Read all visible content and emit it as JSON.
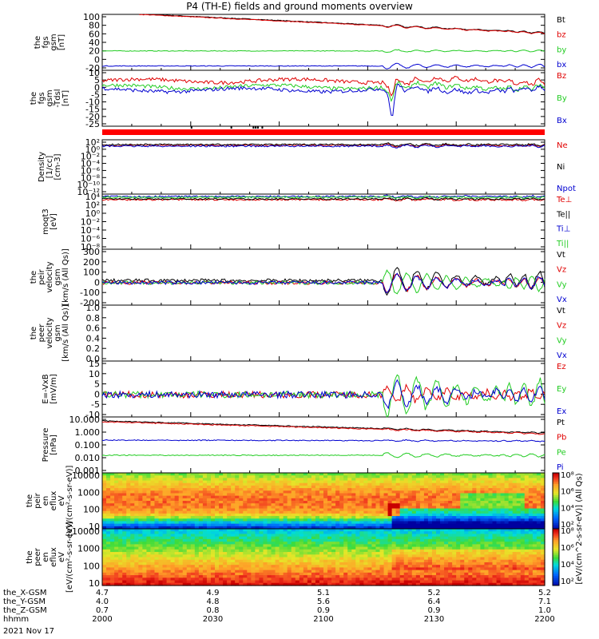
{
  "title": "P4 (TH-E) fields and ground moments overview",
  "colors": {
    "black": "#000000",
    "red": "#e00000",
    "green": "#22cc22",
    "blue": "#0000d0"
  },
  "chart_data": [
    {
      "type": "line",
      "name": "fgs_gsm",
      "ylabel": [
        "the",
        "fgs",
        "gsm",
        "[nT]"
      ],
      "ylim": [
        -30,
        100
      ],
      "yticks": [
        "100",
        "80",
        "60",
        "40",
        "20",
        "0",
        "-20"
      ],
      "series": [
        {
          "name": "Bt",
          "color": "black",
          "shape": "decline",
          "start": 105,
          "end": 57
        },
        {
          "name": "bz",
          "color": "red",
          "shape": "decline",
          "start": 104,
          "end": 56
        },
        {
          "name": "by",
          "color": "green",
          "shape": "flat",
          "value": 15
        },
        {
          "name": "bx",
          "color": "blue",
          "shape": "flat",
          "value": -20
        }
      ]
    },
    {
      "type": "line",
      "name": "fgs_dsl",
      "ylabel": [
        "the",
        "fgs",
        "gsm",
        "-Tdsl",
        "[nT]"
      ],
      "ylim": [
        -27,
        10
      ],
      "yticks": [
        "10",
        "5",
        "0",
        "-5",
        "-10",
        "-15",
        "-20",
        "-25"
      ],
      "series": [
        {
          "name": "Bz",
          "color": "red",
          "value": 3
        },
        {
          "name": "By",
          "color": "green",
          "value": -1
        },
        {
          "name": "Bx",
          "color": "blue",
          "value": -3
        }
      ]
    },
    {
      "type": "line",
      "name": "density",
      "ylabel": [
        "Density",
        "[1/cc]",
        "[cm-3]"
      ],
      "yscale": "log",
      "yticks": [
        "10²",
        "10⁰",
        "10⁻²",
        "10⁻⁴",
        "10⁻⁶",
        "10⁻⁸",
        "10⁻¹⁰",
        "10⁻¹²"
      ],
      "series": [
        {
          "name": "Ne",
          "color": "red"
        },
        {
          "name": "Ni",
          "color": "black"
        },
        {
          "name": "Npot",
          "color": "blue"
        }
      ]
    },
    {
      "type": "line",
      "name": "temperature",
      "ylabel": [
        "moqt3",
        "[eV]"
      ],
      "yscale": "log",
      "yticks": [
        "10⁴",
        "10²",
        "10⁰",
        "10⁻²",
        "10⁻⁴",
        "10⁻⁶",
        "10⁻⁸"
      ],
      "series": [
        {
          "name": "Te⊥",
          "color": "red"
        },
        {
          "name": "Te||",
          "color": "black"
        },
        {
          "name": "Ti⊥",
          "color": "blue"
        },
        {
          "name": "Ti||",
          "color": "green"
        }
      ]
    },
    {
      "type": "line",
      "name": "peir_velocity",
      "ylabel": [
        "the",
        "peir",
        "velocity",
        "gsm",
        "[km/s (All Qs)]"
      ],
      "ylim": [
        -200,
        300
      ],
      "yticks": [
        "300",
        "200",
        "100",
        "0",
        "-100",
        "-200"
      ],
      "series": [
        {
          "name": "Vt",
          "color": "black"
        },
        {
          "name": "Vz",
          "color": "red"
        },
        {
          "name": "Vy",
          "color": "green"
        },
        {
          "name": "Vx",
          "color": "blue"
        }
      ]
    },
    {
      "type": "line",
      "name": "peer_velocity",
      "ylabel": [
        "the",
        "peer",
        "velocity",
        "gsm",
        "[km/s (All Qs)]"
      ],
      "ylim": [
        0,
        1
      ],
      "yticks": [
        "1.0",
        "0.8",
        "0.6",
        "0.4",
        "0.2",
        "0.0"
      ],
      "series": [
        {
          "name": "Vt",
          "color": "black"
        },
        {
          "name": "Vz",
          "color": "red"
        },
        {
          "name": "Vy",
          "color": "green"
        },
        {
          "name": "Vx",
          "color": "blue"
        }
      ]
    },
    {
      "type": "line",
      "name": "efield",
      "ylabel": [
        "E=-VxB",
        "[mV/m]"
      ],
      "ylim": [
        -10,
        15
      ],
      "yticks": [
        "15",
        "10",
        "5",
        "0",
        "-5",
        "-10"
      ],
      "series": [
        {
          "name": "Ez",
          "color": "red"
        },
        {
          "name": "Ey",
          "color": "green"
        },
        {
          "name": "Ex",
          "color": "blue"
        }
      ]
    },
    {
      "type": "line",
      "name": "pressure",
      "ylabel": [
        "Pressure",
        "[nPa]"
      ],
      "yscale": "log",
      "yticks": [
        "10.000",
        "1.000",
        "0.100",
        "0.010",
        "0.001"
      ],
      "series": [
        {
          "name": "Pt",
          "color": "black"
        },
        {
          "name": "Pb",
          "color": "red"
        },
        {
          "name": "Pe",
          "color": "green"
        },
        {
          "name": "Pi",
          "color": "blue"
        }
      ]
    },
    {
      "type": "heatmap",
      "name": "peir_spectrogram",
      "ylabel": [
        "the",
        "peir",
        "en",
        "eflux",
        "eV",
        "[eV/(cm²-s-sr-eV)]"
      ],
      "yticks": [
        "10000",
        "1000",
        "100",
        "10"
      ]
    },
    {
      "type": "heatmap",
      "name": "peer_spectrogram",
      "ylabel": [
        "the",
        "peer",
        "en",
        "eflux",
        "eV",
        "[eV/(cm²-s-sr-eV)]"
      ],
      "yticks": [
        "10000",
        "1000",
        "100",
        "10"
      ]
    }
  ],
  "colorbar": {
    "label": "[eV/(cm^2-s-sr-eV)] (All Qs)",
    "ticks": [
      "10⁸",
      "10⁷",
      "10⁶",
      "10⁵",
      "10⁴",
      "10³",
      "10²"
    ]
  },
  "xaxis": {
    "rows": [
      {
        "label": "the_X-GSM",
        "values": [
          "4.7",
          "4.9",
          "5.1",
          "5.2",
          "5.2"
        ]
      },
      {
        "label": "the_Y-GSM",
        "values": [
          "4.0",
          "4.8",
          "5.6",
          "6.4",
          "7.1"
        ]
      },
      {
        "label": "the_Z-GSM",
        "values": [
          "0.7",
          "0.8",
          "0.9",
          "0.9",
          "1.0"
        ]
      },
      {
        "label": "hhmm",
        "values": [
          "2000",
          "2030",
          "2100",
          "2130",
          "2200"
        ]
      }
    ],
    "date": "2021 Nov 17"
  }
}
